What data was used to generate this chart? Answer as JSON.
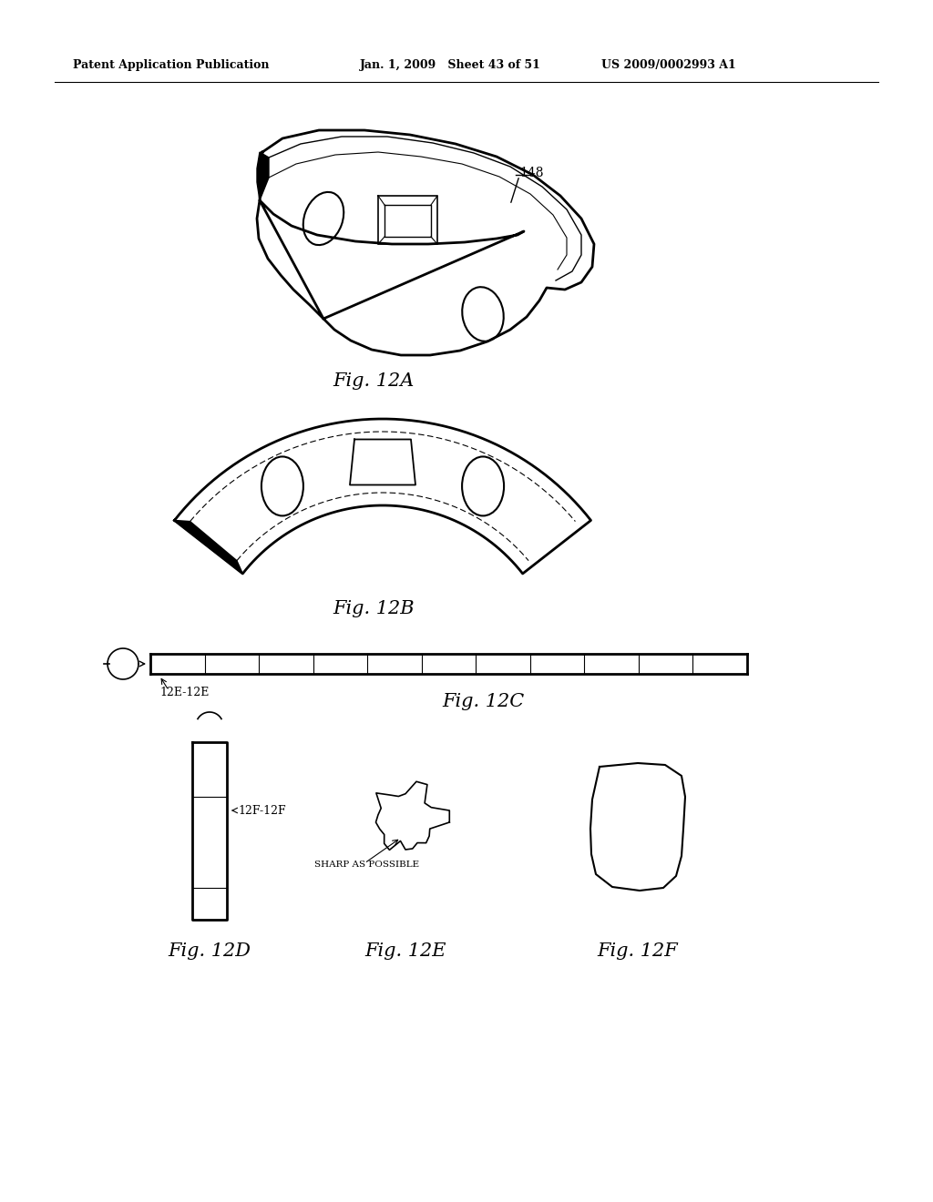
{
  "bg_color": "#ffffff",
  "header_left": "Patent Application Publication",
  "header_mid": "Jan. 1, 2009   Sheet 43 of 51",
  "header_right": "US 2009/0002993 A1",
  "fig_labels": [
    "Fig. 12A",
    "Fig. 12B",
    "Fig. 12C",
    "Fig. 12D",
    "Fig. 12E",
    "Fig. 12F"
  ],
  "label_148": "148",
  "label_12E12E": "12E-12E",
  "label_12F12F": "12F-12F",
  "label_sharp": "SHARP AS POSSIBLE"
}
